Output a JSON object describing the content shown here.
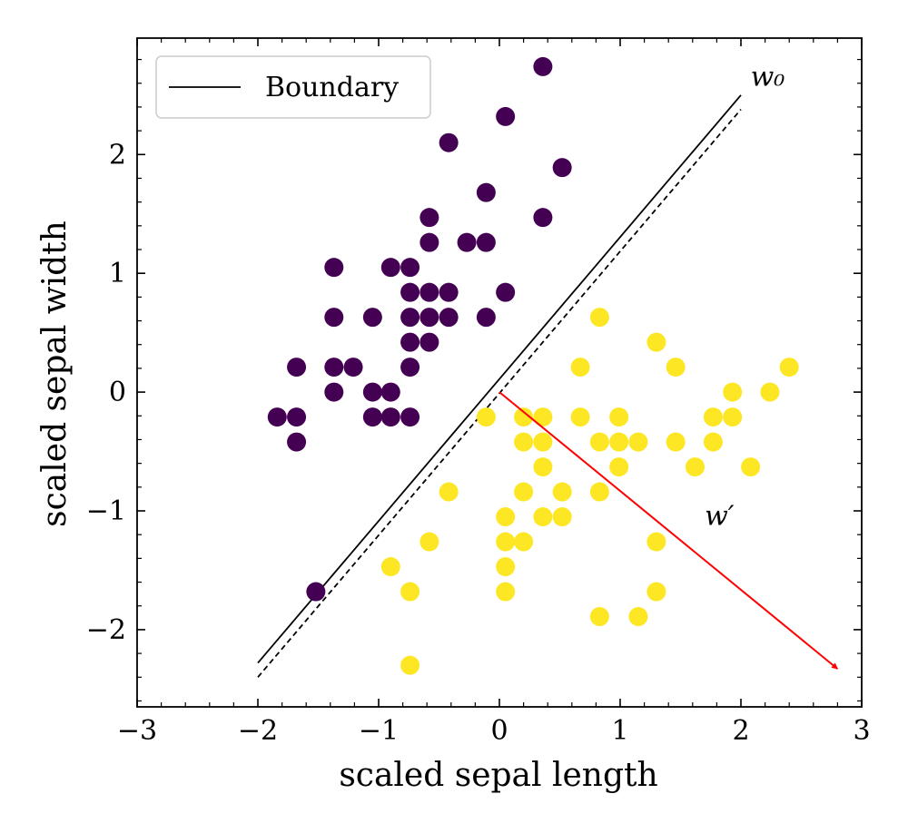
{
  "chart_data": {
    "type": "scatter",
    "title": "",
    "xlabel": "scaled sepal length",
    "ylabel": "scaled sepal width",
    "xlim": [
      -3,
      3
    ],
    "ylim": [
      -2.65,
      2.98
    ],
    "xticks": [
      -3,
      -2,
      -1,
      0,
      1,
      2,
      3
    ],
    "xtick_labels": [
      "−3",
      "−2",
      "−1",
      "0",
      "1",
      "2",
      "3"
    ],
    "yticks": [
      -2,
      -1,
      0,
      1,
      2
    ],
    "ytick_labels": [
      "−2",
      "−1",
      "0",
      "1",
      "2"
    ],
    "grid": false,
    "legend": {
      "position": "top-left",
      "entries": [
        "Boundary"
      ]
    },
    "colors": {
      "class0": "#440154",
      "class1": "#fde725",
      "boundary": "#000000",
      "arrow": "#ff0000"
    },
    "series": [
      {
        "color": "#440154",
        "points": [
          [
            0.36,
            2.74
          ],
          [
            0.05,
            2.32
          ],
          [
            -0.42,
            2.1
          ],
          [
            0.52,
            1.89
          ],
          [
            -0.11,
            1.68
          ],
          [
            -0.58,
            1.47
          ],
          [
            0.36,
            1.47
          ],
          [
            -0.58,
            1.26
          ],
          [
            -0.27,
            1.26
          ],
          [
            -0.11,
            1.26
          ],
          [
            -1.37,
            1.05
          ],
          [
            -0.9,
            1.05
          ],
          [
            -0.74,
            1.05
          ],
          [
            -0.74,
            0.84
          ],
          [
            -0.58,
            0.84
          ],
          [
            -0.42,
            0.84
          ],
          [
            0.05,
            0.84
          ],
          [
            -1.37,
            0.63
          ],
          [
            -1.05,
            0.63
          ],
          [
            -0.74,
            0.63
          ],
          [
            -0.58,
            0.63
          ],
          [
            -0.42,
            0.63
          ],
          [
            -0.11,
            0.63
          ],
          [
            -0.74,
            0.42
          ],
          [
            -0.58,
            0.42
          ],
          [
            -1.68,
            0.21
          ],
          [
            -1.37,
            0.21
          ],
          [
            -1.21,
            0.21
          ],
          [
            -0.74,
            0.21
          ],
          [
            -1.37,
            0.0
          ],
          [
            -1.05,
            0.0
          ],
          [
            -0.9,
            0.0
          ],
          [
            -1.84,
            -0.21
          ],
          [
            -1.68,
            -0.21
          ],
          [
            -1.05,
            -0.21
          ],
          [
            -0.9,
            -0.21
          ],
          [
            -0.74,
            -0.21
          ],
          [
            -1.68,
            -0.42
          ],
          [
            -1.52,
            -1.68
          ]
        ]
      },
      {
        "color": "#fde725",
        "points": [
          [
            0.83,
            0.63
          ],
          [
            1.3,
            0.42
          ],
          [
            0.67,
            0.21
          ],
          [
            1.46,
            0.21
          ],
          [
            2.4,
            0.21
          ],
          [
            1.93,
            0.0
          ],
          [
            2.24,
            0.0
          ],
          [
            -0.11,
            -0.21
          ],
          [
            0.2,
            -0.21
          ],
          [
            0.36,
            -0.21
          ],
          [
            0.67,
            -0.21
          ],
          [
            0.99,
            -0.21
          ],
          [
            1.77,
            -0.21
          ],
          [
            1.93,
            -0.21
          ],
          [
            0.2,
            -0.42
          ],
          [
            0.36,
            -0.42
          ],
          [
            0.83,
            -0.42
          ],
          [
            0.99,
            -0.42
          ],
          [
            1.15,
            -0.42
          ],
          [
            1.46,
            -0.42
          ],
          [
            1.77,
            -0.42
          ],
          [
            0.36,
            -0.63
          ],
          [
            0.99,
            -0.63
          ],
          [
            1.62,
            -0.63
          ],
          [
            2.08,
            -0.63
          ],
          [
            -0.42,
            -0.84
          ],
          [
            0.2,
            -0.84
          ],
          [
            0.52,
            -0.84
          ],
          [
            0.83,
            -0.84
          ],
          [
            0.05,
            -1.05
          ],
          [
            0.36,
            -1.05
          ],
          [
            0.52,
            -1.05
          ],
          [
            -0.58,
            -1.26
          ],
          [
            0.05,
            -1.26
          ],
          [
            0.2,
            -1.26
          ],
          [
            1.3,
            -1.26
          ],
          [
            -0.9,
            -1.47
          ],
          [
            0.05,
            -1.47
          ],
          [
            -0.74,
            -1.68
          ],
          [
            0.05,
            -1.68
          ],
          [
            1.3,
            -1.68
          ],
          [
            0.83,
            -1.89
          ],
          [
            1.15,
            -1.89
          ],
          [
            -0.74,
            -2.3
          ]
        ]
      }
    ],
    "lines": [
      {
        "name": "Boundary",
        "style": "solid",
        "x": [
          -2,
          2
        ],
        "y": [
          -2.28,
          2.5
        ]
      },
      {
        "style": "dashed",
        "x": [
          -2,
          2
        ],
        "y": [
          -2.4,
          2.38
        ]
      }
    ],
    "arrow": {
      "from": [
        0,
        0
      ],
      "to": [
        2.8,
        -2.33
      ],
      "color": "#ff0000"
    },
    "annotations": [
      {
        "text": "w₀",
        "x": 2.08,
        "y": 2.58
      },
      {
        "text": "w′",
        "x": 1.7,
        "y": -1.12
      }
    ]
  }
}
